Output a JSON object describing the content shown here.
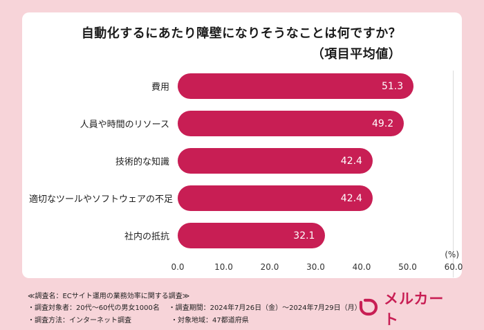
{
  "colors": {
    "page_background": "#f7d4d9",
    "card_background": "#ffffff",
    "accent": "#c81e54",
    "value_label": "#ffffff"
  },
  "title": {
    "line1": "自動化するにあたり障壁になりそうなことは何ですか？",
    "line2": "（項目平均値）"
  },
  "chart_data": {
    "type": "bar",
    "orientation": "horizontal",
    "categories": [
      "費用",
      "人員や時間のリソース",
      "技術的な知識",
      "適切なツールやソフトウェアの不足",
      "社内の抵抗"
    ],
    "values": [
      51.3,
      49.2,
      42.4,
      42.4,
      32.1
    ],
    "xlim": [
      0,
      60
    ],
    "xticks": [
      "0.0",
      "10.0",
      "20.0",
      "30.0",
      "40.0",
      "50.0",
      "60.0"
    ],
    "unit_label": "(%)",
    "bar_color": "#c81e54",
    "grid": "single line at x=60",
    "legend": "none"
  },
  "footer": {
    "line1": "≪調査名：ECサイト運用の業務効率に関する調査≫",
    "left2": "・調査対象者：20代～60代の男女1000名",
    "right2": "・調査期間：2024年7月26日（金）～2024年7月29日（月）",
    "left3": "・調査方法：インターネット調査",
    "right3": "・対象地域：47都道府県",
    "logo_text": "メルカート"
  }
}
